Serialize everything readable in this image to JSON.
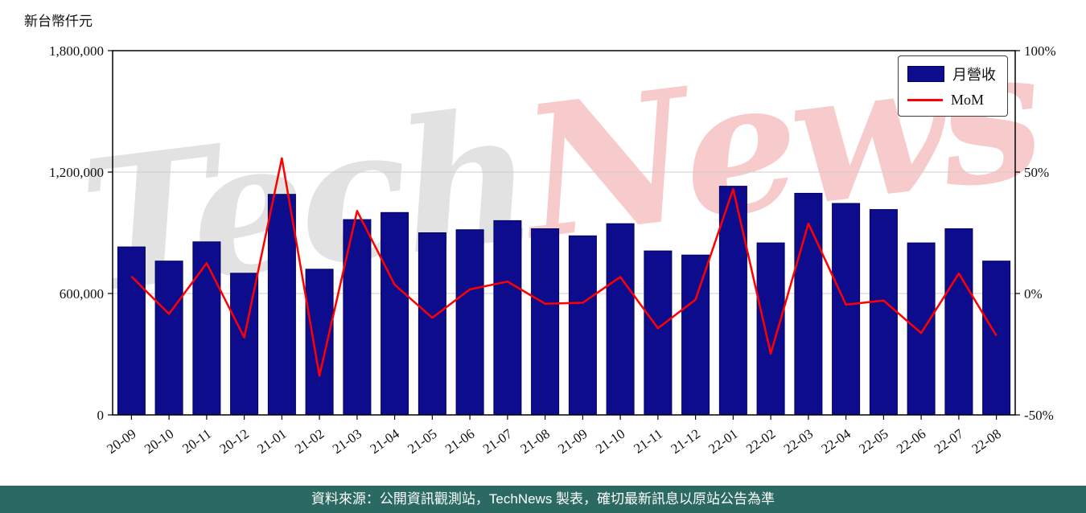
{
  "header": {
    "unit_label": "新台幣仟元"
  },
  "legend": {
    "revenue": "月營收",
    "mom": "MoM"
  },
  "watermark": {
    "part1": "Tech",
    "part2": "News"
  },
  "footer": {
    "text": "資料來源：公開資訊觀測站，TechNews 製表，確切最新訊息以原站公告為準"
  },
  "colors": {
    "bar": "#0d0c8d",
    "bar_edge": "#000060",
    "line": "#ff0000",
    "grid": "#cccccc",
    "axis": "#000000",
    "footer_bg": "#2b6a62"
  },
  "chart_data": {
    "type": "bar",
    "title": "",
    "categories": [
      "20-09",
      "20-10",
      "20-11",
      "20-12",
      "21-01",
      "21-02",
      "21-03",
      "21-04",
      "21-05",
      "21-06",
      "21-07",
      "21-08",
      "21-09",
      "21-10",
      "21-11",
      "21-12",
      "22-01",
      "22-02",
      "22-03",
      "22-04",
      "22-05",
      "22-06",
      "22-07",
      "22-08"
    ],
    "series": [
      {
        "name": "月營收",
        "type": "bar",
        "axis": "left",
        "values": [
          830000,
          760000,
          855000,
          700000,
          1090000,
          720000,
          965000,
          1000000,
          900000,
          915000,
          960000,
          920000,
          885000,
          945000,
          810000,
          790000,
          1130000,
          850000,
          1095000,
          1045000,
          1015000,
          850000,
          920000,
          760000
        ]
      },
      {
        "name": "MoM",
        "type": "line",
        "axis": "right",
        "values": [
          7.0,
          -8.4,
          12.5,
          -18.1,
          55.7,
          -33.9,
          34.0,
          3.6,
          -10.0,
          1.7,
          4.9,
          -4.2,
          -3.8,
          6.8,
          -14.3,
          -2.5,
          43.0,
          -24.8,
          28.8,
          -4.6,
          -2.9,
          -16.3,
          8.2,
          -17.4
        ]
      }
    ],
    "xlabel": "",
    "ylabel": "新台幣仟元",
    "y_left": {
      "min": 0,
      "max": 1800000,
      "ticks": [
        0,
        600000,
        1200000,
        1800000
      ],
      "tick_labels": [
        "0",
        "600,000",
        "1,200,000",
        "1,800,000"
      ]
    },
    "y_right": {
      "min": -50,
      "max": 100,
      "ticks": [
        -50,
        0,
        50,
        100
      ],
      "tick_labels": [
        "-50%",
        "0%",
        "50%",
        "100%"
      ]
    },
    "grid": true,
    "legend_position": "top-right"
  }
}
